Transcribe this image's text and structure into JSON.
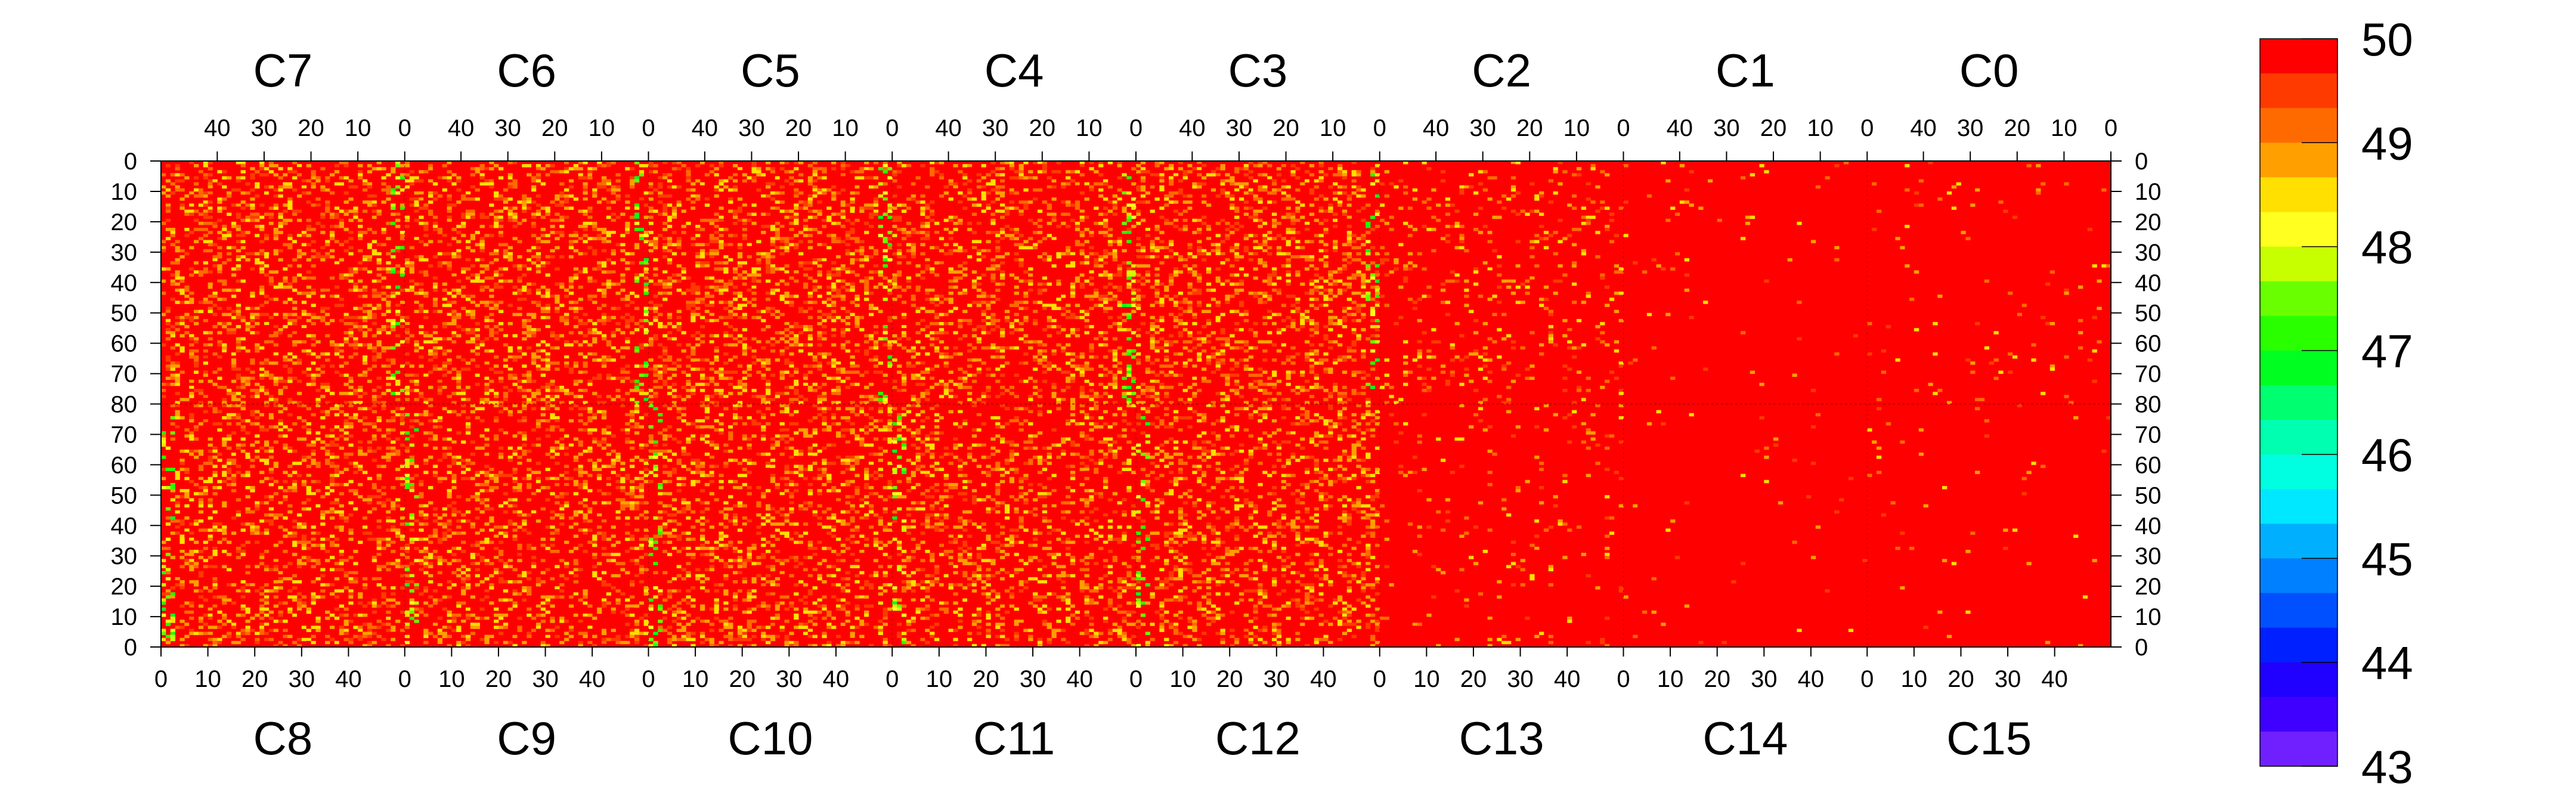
{
  "chart_data": {
    "type": "heatmap",
    "chips_top": [
      "C7",
      "C6",
      "C5",
      "C4",
      "C3",
      "C2",
      "C1",
      "C0"
    ],
    "chips_bottom": [
      "C8",
      "C9",
      "C10",
      "C11",
      "C12",
      "C13",
      "C14",
      "C15"
    ],
    "top_ticks": [
      "40",
      "30",
      "20",
      "10",
      "0"
    ],
    "bottom_ticks": [
      "0",
      "10",
      "20",
      "30",
      "40"
    ],
    "y_ticks_top_half": [
      "0",
      "10",
      "20",
      "30",
      "40",
      "50",
      "60",
      "70",
      "80"
    ],
    "y_ticks_bottom_half": [
      "70",
      "60",
      "50",
      "40",
      "30",
      "20",
      "10",
      "0"
    ],
    "chip_columns": 52,
    "chip_rows": 80,
    "z_range": [
      43,
      50
    ],
    "colorbar_ticks": [
      "50",
      "49",
      "48",
      "47",
      "46",
      "45",
      "44",
      "43"
    ],
    "colorbar_colors": [
      "#ff0000",
      "#ff3a00",
      "#ff6a00",
      "#ffa000",
      "#ffe000",
      "#ffff20",
      "#c8ff00",
      "#6aff00",
      "#2aff00",
      "#00ff20",
      "#00ff70",
      "#00ffb0",
      "#00ffe0",
      "#00e8ff",
      "#00b0ff",
      "#0080ff",
      "#0050ff",
      "#0020ff",
      "#2000ff",
      "#4000ff",
      "#7020ff"
    ],
    "column_noise_mean_by_top_chip": [
      48.9,
      48.85,
      48.85,
      48.95,
      48.85,
      49.6,
      49.95,
      49.9
    ],
    "column_noise_mean_by_bottom_chip": [
      48.9,
      48.9,
      48.9,
      49.0,
      49.0,
      49.8,
      49.95,
      49.95
    ],
    "low_edge_column_mean": 48.3,
    "dominant_value": 50
  }
}
